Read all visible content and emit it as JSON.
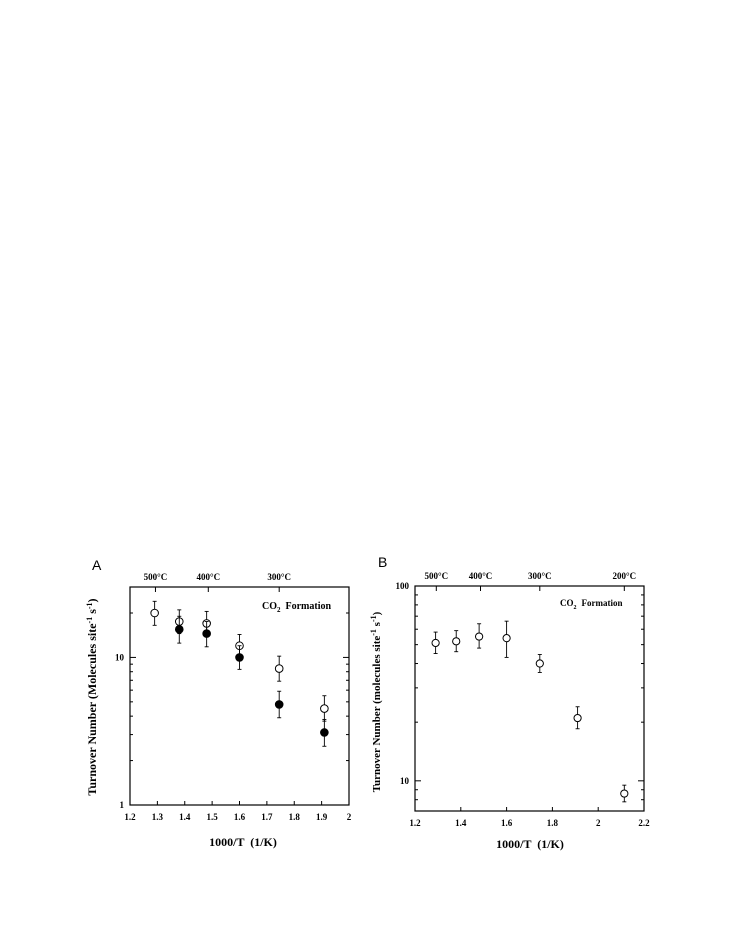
{
  "chart_data": [
    {
      "panel": "A",
      "type": "scatter",
      "xlabel": "1000/T  (1/K)",
      "ylabel": "Turnover Number (Molecules site-1 s-1)",
      "annotation": "CO2 Formation",
      "xlim": [
        1.2,
        2.0
      ],
      "ylim": [
        1,
        30
      ],
      "yscale": "log",
      "x_ticks": [
        "1.2",
        "1.3",
        "1.4",
        "1.5",
        "1.6",
        "1.7",
        "1.8",
        "1.9",
        "2"
      ],
      "y_ticks": [
        {
          "value": 1,
          "label": "1"
        },
        {
          "value": 10,
          "label": "10"
        }
      ],
      "top_axis": [
        {
          "value": 1.293,
          "label": "500°C"
        },
        {
          "value": 1.486,
          "label": "400°C"
        },
        {
          "value": 1.745,
          "label": "300°C"
        }
      ],
      "series": [
        {
          "marker": "open-circle",
          "points": [
            {
              "x": 1.29,
              "y": 20,
              "lo": 16.5,
              "hi": 24
            },
            {
              "x": 1.38,
              "y": 17.5,
              "lo": 14.5,
              "hi": 21
            },
            {
              "x": 1.48,
              "y": 17,
              "lo": 14,
              "hi": 20.5
            },
            {
              "x": 1.6,
              "y": 12,
              "lo": 10.2,
              "hi": 14.3
            },
            {
              "x": 1.745,
              "y": 8.4,
              "lo": 6.9,
              "hi": 10.2
            },
            {
              "x": 1.91,
              "y": 4.5,
              "lo": 3.7,
              "hi": 5.5
            }
          ]
        },
        {
          "marker": "filled-circle",
          "points": [
            {
              "x": 1.38,
              "y": 15.5,
              "lo": 12.5,
              "hi": 19
            },
            {
              "x": 1.48,
              "y": 14.5,
              "lo": 11.8,
              "hi": 17.5
            },
            {
              "x": 1.6,
              "y": 10,
              "lo": 8.3,
              "hi": 12
            },
            {
              "x": 1.745,
              "y": 4.8,
              "lo": 3.9,
              "hi": 5.9
            },
            {
              "x": 1.91,
              "y": 3.1,
              "lo": 2.5,
              "hi": 3.8
            }
          ]
        }
      ]
    },
    {
      "panel": "B",
      "type": "scatter",
      "xlabel": "1000/T  (1/K)",
      "ylabel": "Turnover Number (molecules site-1 s-1)",
      "annotation": "CO2 Formation",
      "xlim": [
        1.2,
        2.2
      ],
      "ylim": [
        7,
        100
      ],
      "yscale": "log",
      "x_ticks": [
        "1.2",
        "1.4",
        "1.6",
        "1.8",
        "2",
        "2.2"
      ],
      "y_ticks": [
        {
          "value": 10,
          "label": "10"
        },
        {
          "value": 100,
          "label": "100"
        }
      ],
      "top_axis": [
        {
          "value": 1.293,
          "label": "500°C"
        },
        {
          "value": 1.486,
          "label": "400°C"
        },
        {
          "value": 1.745,
          "label": "300°C"
        },
        {
          "value": 2.114,
          "label": "200°C"
        }
      ],
      "series": [
        {
          "marker": "open-circle",
          "points": [
            {
              "x": 1.29,
              "y": 51,
              "lo": 45,
              "hi": 58
            },
            {
              "x": 1.38,
              "y": 52,
              "lo": 46,
              "hi": 59
            },
            {
              "x": 1.48,
              "y": 55,
              "lo": 48,
              "hi": 64
            },
            {
              "x": 1.6,
              "y": 54,
              "lo": 43,
              "hi": 66
            },
            {
              "x": 1.745,
              "y": 40,
              "lo": 36,
              "hi": 44.5
            },
            {
              "x": 1.91,
              "y": 21,
              "lo": 18.5,
              "hi": 24
            },
            {
              "x": 2.114,
              "y": 8.6,
              "lo": 7.8,
              "hi": 9.5
            }
          ]
        }
      ]
    }
  ],
  "labels": {
    "panel_a": "A",
    "panel_b": "B",
    "co2_prefix": "CO",
    "co2_sub": "2",
    "formation": "Formation",
    "ylabel_a_pre": "Turnover Number (Molecules site",
    "ylabel_a_mid": " s",
    "ylabel_b_pre": "Turnover Number (molecules site",
    "ylabel_b_mid": " s",
    "sup_neg1": "-1",
    "close_paren": ")"
  }
}
